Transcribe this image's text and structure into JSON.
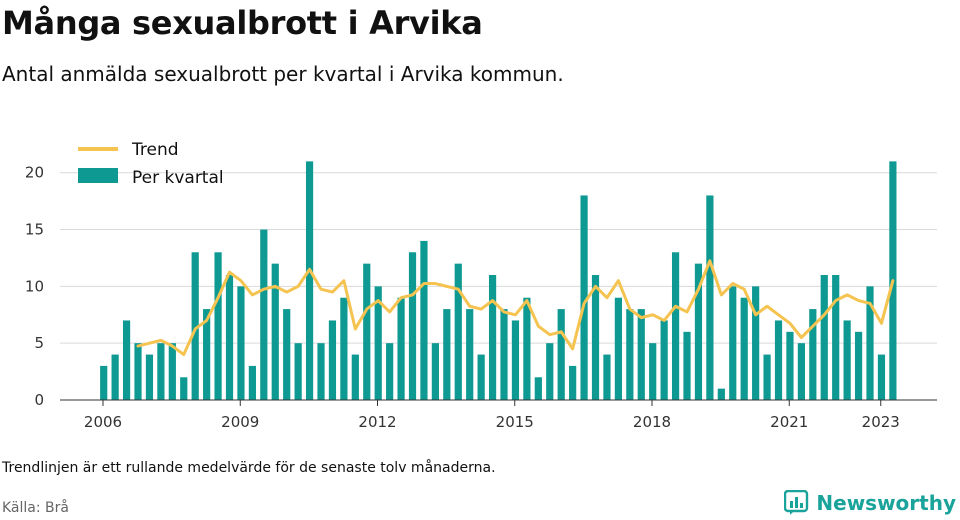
{
  "title": "Många sexualbrott i Arvika",
  "subtitle": "Antal anmälda sexualbrott per kvartal i Arvika kommun.",
  "note": "Trendlinjen är ett rullande medelvärde för de senaste tolv månaderna.",
  "source": "Källa: Brå",
  "brand": "Newsworthy",
  "colors": {
    "bar": "#0e9a93",
    "trend": "#f5c350",
    "grid": "#d9d9d9",
    "brand": "#1aa39a"
  },
  "chart_data": {
    "type": "bar",
    "title": "Många sexualbrott i Arvika",
    "subtitle": "Antal anmälda sexualbrott per kvartal i Arvika kommun.",
    "xlabel": "",
    "ylabel": "",
    "ylim": [
      0,
      22
    ],
    "yticks": [
      0,
      5,
      10,
      15,
      20
    ],
    "xticks": [
      2006,
      2009,
      2012,
      2015,
      2018,
      2021,
      2023
    ],
    "grid": true,
    "legend_position": "top-left",
    "categories": [
      "2006-Q1",
      "2006-Q2",
      "2006-Q3",
      "2006-Q4",
      "2007-Q1",
      "2007-Q2",
      "2007-Q3",
      "2007-Q4",
      "2008-Q1",
      "2008-Q2",
      "2008-Q3",
      "2008-Q4",
      "2009-Q1",
      "2009-Q2",
      "2009-Q3",
      "2009-Q4",
      "2010-Q1",
      "2010-Q2",
      "2010-Q3",
      "2010-Q4",
      "2011-Q1",
      "2011-Q2",
      "2011-Q3",
      "2011-Q4",
      "2012-Q1",
      "2012-Q2",
      "2012-Q3",
      "2012-Q4",
      "2013-Q1",
      "2013-Q2",
      "2013-Q3",
      "2013-Q4",
      "2014-Q1",
      "2014-Q2",
      "2014-Q3",
      "2014-Q4",
      "2015-Q1",
      "2015-Q2",
      "2015-Q3",
      "2015-Q4",
      "2016-Q1",
      "2016-Q2",
      "2016-Q3",
      "2016-Q4",
      "2017-Q1",
      "2017-Q2",
      "2017-Q3",
      "2017-Q4",
      "2018-Q1",
      "2018-Q2",
      "2018-Q3",
      "2018-Q4",
      "2019-Q1",
      "2019-Q2",
      "2019-Q3",
      "2019-Q4",
      "2020-Q1",
      "2020-Q2",
      "2020-Q3",
      "2020-Q4",
      "2021-Q1",
      "2021-Q2",
      "2021-Q3",
      "2021-Q4",
      "2022-Q1",
      "2022-Q2",
      "2022-Q3",
      "2022-Q4",
      "2023-Q1",
      "2023-Q2"
    ],
    "series": [
      {
        "name": "Per kvartal",
        "type": "bar",
        "values": [
          3,
          4,
          7,
          5,
          4,
          5,
          5,
          2,
          13,
          8,
          13,
          11,
          10,
          3,
          15,
          12,
          8,
          5,
          21,
          5,
          7,
          9,
          4,
          12,
          10,
          5,
          9,
          13,
          14,
          5,
          8,
          12,
          8,
          4,
          11,
          8,
          7,
          9,
          2,
          5,
          8,
          3,
          18,
          11,
          4,
          9,
          8,
          8,
          5,
          7,
          13,
          6,
          12,
          18,
          1,
          10,
          9,
          10,
          4,
          7,
          6,
          5,
          8,
          11,
          11,
          7,
          6,
          10,
          4,
          21
        ]
      },
      {
        "name": "Trend",
        "type": "line",
        "values": [
          null,
          null,
          null,
          4.75,
          5.0,
          5.25,
          4.75,
          4.0,
          6.25,
          7.0,
          9.0,
          11.25,
          10.5,
          9.25,
          9.75,
          10.0,
          9.5,
          10.0,
          11.5,
          9.75,
          9.5,
          10.5,
          6.25,
          8.0,
          8.75,
          7.75,
          9.0,
          9.25,
          10.25,
          10.25,
          10.0,
          9.75,
          8.25,
          8.0,
          8.75,
          7.75,
          7.5,
          8.75,
          6.5,
          5.75,
          6.0,
          4.5,
          8.5,
          10.0,
          9.0,
          10.5,
          8.0,
          7.25,
          7.5,
          7.0,
          8.25,
          7.75,
          9.75,
          12.25,
          9.25,
          10.25,
          9.75,
          7.5,
          8.25,
          7.5,
          6.75,
          5.5,
          6.5,
          7.5,
          8.75,
          9.25,
          8.75,
          8.5,
          6.75,
          10.5
        ]
      }
    ]
  }
}
